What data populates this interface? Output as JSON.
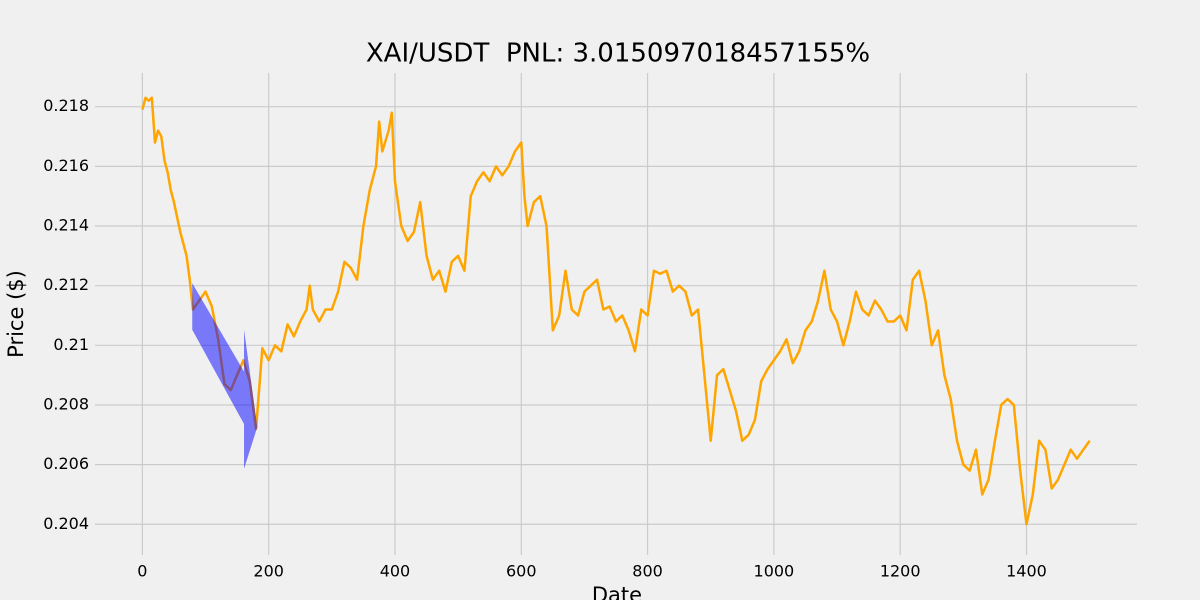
{
  "chart_data": {
    "type": "line",
    "title": "XAI/USDT  PNL: 3.015097018457155%",
    "xlabel": "Date",
    "ylabel": "Price ($)",
    "xlim": [
      -75,
      1575
    ],
    "ylim": [
      0.20297,
      0.21913
    ],
    "xticks": [
      0,
      200,
      400,
      600,
      800,
      1000,
      1200,
      1400
    ],
    "yticks": [
      0.204,
      0.206,
      0.208,
      0.21,
      0.212,
      0.214,
      0.216,
      0.218
    ],
    "grid": true,
    "x": [
      0,
      5,
      10,
      15,
      20,
      25,
      30,
      35,
      40,
      45,
      50,
      60,
      70,
      75,
      80,
      90,
      100,
      110,
      120,
      130,
      140,
      150,
      160,
      170,
      180,
      190,
      200,
      210,
      220,
      230,
      240,
      250,
      260,
      265,
      270,
      280,
      290,
      300,
      310,
      320,
      330,
      340,
      350,
      360,
      370,
      375,
      380,
      390,
      395,
      400,
      410,
      420,
      430,
      440,
      450,
      460,
      470,
      480,
      490,
      500,
      510,
      520,
      530,
      540,
      550,
      560,
      570,
      580,
      590,
      600,
      605,
      610,
      620,
      630,
      640,
      650,
      660,
      670,
      680,
      690,
      700,
      710,
      720,
      730,
      740,
      750,
      760,
      770,
      780,
      790,
      800,
      810,
      820,
      830,
      840,
      850,
      860,
      870,
      880,
      890,
      900,
      910,
      920,
      930,
      940,
      950,
      960,
      970,
      980,
      990,
      1000,
      1010,
      1020,
      1030,
      1040,
      1050,
      1060,
      1070,
      1080,
      1090,
      1100,
      1110,
      1120,
      1130,
      1140,
      1150,
      1160,
      1170,
      1180,
      1190,
      1200,
      1210,
      1220,
      1230,
      1240,
      1250,
      1260,
      1270,
      1280,
      1290,
      1300,
      1310,
      1320,
      1330,
      1340,
      1350,
      1360,
      1370,
      1380,
      1390,
      1400,
      1410,
      1420,
      1430,
      1440,
      1450,
      1460,
      1470,
      1480,
      1490,
      1500
    ],
    "series": [
      {
        "color": "#ffa500",
        "values": [
          0.2179,
          0.2183,
          0.2182,
          0.2183,
          0.2168,
          0.2172,
          0.217,
          0.2162,
          0.2158,
          0.2152,
          0.2148,
          0.2138,
          0.213,
          0.2122,
          0.2112,
          0.2115,
          0.2118,
          0.2113,
          0.2102,
          0.2087,
          0.2085,
          0.209,
          0.2095,
          0.2088,
          0.2072,
          0.2099,
          0.2095,
          0.21,
          0.2098,
          0.2107,
          0.2103,
          0.2108,
          0.2112,
          0.212,
          0.2112,
          0.2108,
          0.2112,
          0.2112,
          0.2118,
          0.2128,
          0.2126,
          0.2122,
          0.214,
          0.2152,
          0.216,
          0.2175,
          0.2165,
          0.2172,
          0.2178,
          0.2155,
          0.214,
          0.2135,
          0.2138,
          0.2148,
          0.213,
          0.2122,
          0.2125,
          0.2118,
          0.2128,
          0.213,
          0.2125,
          0.215,
          0.2155,
          0.2158,
          0.2155,
          0.216,
          0.2157,
          0.216,
          0.2165,
          0.2168,
          0.215,
          0.214,
          0.2148,
          0.215,
          0.214,
          0.2105,
          0.211,
          0.2125,
          0.2112,
          0.211,
          0.2118,
          0.212,
          0.2122,
          0.2112,
          0.2113,
          0.2108,
          0.211,
          0.2105,
          0.2098,
          0.2112,
          0.211,
          0.2125,
          0.2124,
          0.2125,
          0.2118,
          0.212,
          0.2118,
          0.211,
          0.2112,
          0.209,
          0.2068,
          0.209,
          0.2092,
          0.2085,
          0.2078,
          0.2068,
          0.207,
          0.2075,
          0.2088,
          0.2092,
          0.2095,
          0.2098,
          0.2102,
          0.2094,
          0.2098,
          0.2105,
          0.2108,
          0.2115,
          0.2125,
          0.2112,
          0.2108,
          0.21,
          0.2108,
          0.2118,
          0.2112,
          0.211,
          0.2115,
          0.2112,
          0.2108,
          0.2108,
          0.211,
          0.2105,
          0.2122,
          0.2125,
          0.2115,
          0.21,
          0.2105,
          0.209,
          0.2082,
          0.2068,
          0.206,
          0.2058,
          0.2065,
          0.205,
          0.2055,
          0.2068,
          0.208,
          0.2082,
          0.208,
          0.2058,
          0.204,
          0.205,
          0.2068,
          0.2065,
          0.2052,
          0.2055,
          0.206,
          0.2065,
          0.2062,
          0.2065,
          0.2068
        ]
      }
    ],
    "region_color": "#0000ff",
    "regions": [
      {
        "x": [
          79,
          161
        ],
        "upper": [
          0.21208,
          0.20912
        ],
        "lower": [
          0.21052,
          0.20736
        ]
      },
      {
        "x": [
          161,
          182
        ],
        "upper": [
          0.21052,
          0.20726
        ],
        "lower": [
          0.20586,
          0.20726
        ]
      }
    ]
  }
}
